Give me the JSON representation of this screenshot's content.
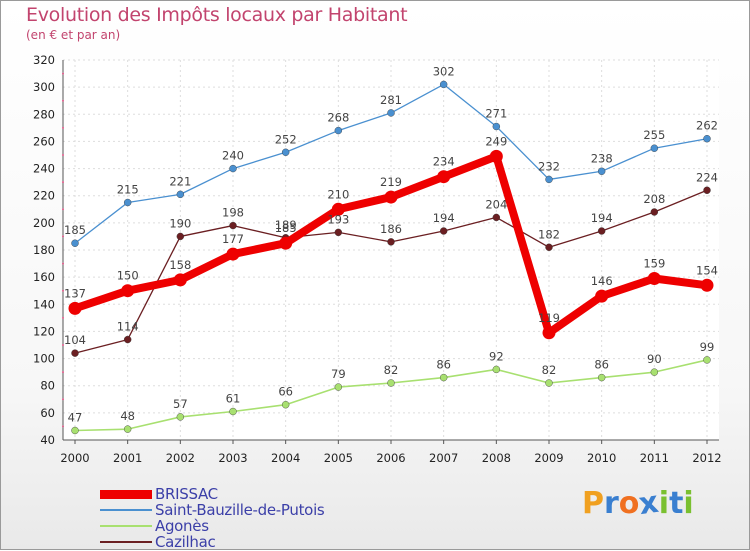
{
  "header": {
    "title": "Evolution des Impôts locaux par Habitant",
    "subtitle": "(en € et par an)"
  },
  "logo": {
    "text": "Proxiti",
    "letters": [
      "P",
      "r",
      "o",
      "x",
      "i",
      "t",
      "i"
    ],
    "colors": [
      "#f0a020",
      "#3a7fd0",
      "#f07020",
      "#3a7fd0",
      "#7ac030",
      "#3a7fd0",
      "#7ac030"
    ]
  },
  "chart_data": {
    "type": "line",
    "title": "Evolution des Impôts locaux par Habitant",
    "subtitle": "(en € et par an)",
    "xlabel": "",
    "ylabel": "",
    "x": [
      "2000",
      "2001",
      "2002",
      "2003",
      "2004",
      "2005",
      "2006",
      "2007",
      "2008",
      "2009",
      "2010",
      "2011",
      "2012"
    ],
    "ylim": [
      40,
      320
    ],
    "yticks": [
      40,
      60,
      80,
      100,
      120,
      140,
      160,
      180,
      200,
      220,
      240,
      260,
      280,
      300,
      320
    ],
    "grid": true,
    "legend_position": "bottom-left",
    "series": [
      {
        "name": "BRISSAC",
        "color": "#ee0000",
        "values": [
          137,
          150,
          158,
          177,
          185,
          210,
          219,
          234,
          249,
          119,
          146,
          159,
          154
        ],
        "labels": [
          "137",
          "150",
          "158",
          "177",
          "185",
          "210",
          "219",
          "234",
          "249",
          "119",
          "146",
          "159",
          "154"
        ]
      },
      {
        "name": "Saint-Bauzille-de-Putois",
        "color": "#4a90d0",
        "values": [
          185,
          215,
          221,
          240,
          252,
          268,
          281,
          302,
          271,
          232,
          238,
          255,
          262
        ],
        "labels": [
          "185",
          "215",
          "221",
          "240",
          "252",
          "268",
          "281",
          "302",
          "271",
          "232",
          "238",
          "255",
          "262"
        ]
      },
      {
        "name": "Agonès",
        "color": "#a8e070",
        "values": [
          47,
          48,
          57,
          61,
          66,
          79,
          82,
          86,
          92,
          82,
          86,
          90,
          99
        ],
        "labels": [
          "47",
          "48",
          "57",
          "61",
          "66",
          "79",
          "82",
          "86",
          "92",
          "82",
          "86",
          "90",
          "99"
        ]
      },
      {
        "name": "Cazilhac",
        "color": "#6b1f22",
        "values": [
          104,
          114,
          190,
          198,
          189,
          193,
          186,
          194,
          204,
          182,
          194,
          208,
          224
        ],
        "labels": [
          "104",
          "114",
          "190",
          "198",
          "189",
          "193",
          "186",
          "194",
          "204",
          "182",
          "194",
          "208",
          "224"
        ]
      }
    ]
  }
}
